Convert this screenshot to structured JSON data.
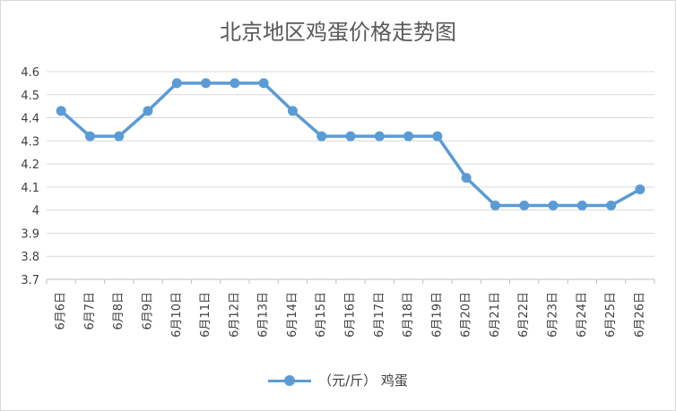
{
  "chart_data": {
    "type": "line",
    "title": "北京地区鸡蛋价格走势图",
    "categories": [
      "6月6日",
      "6月7日",
      "6月8日",
      "6月9日",
      "6月10日",
      "6月11日",
      "6月12日",
      "6月13日",
      "6月14日",
      "6月15日",
      "6月16日",
      "6月17日",
      "6月18日",
      "6月19日",
      "6月20日",
      "6月21日",
      "6月22日",
      "6月23日",
      "6月24日",
      "6月25日",
      "6月26日"
    ],
    "series": [
      {
        "name": "（元/斤） 鸡蛋",
        "values": [
          4.43,
          4.32,
          4.32,
          4.43,
          4.55,
          4.55,
          4.55,
          4.55,
          4.43,
          4.32,
          4.32,
          4.32,
          4.32,
          4.32,
          4.14,
          4.02,
          4.02,
          4.02,
          4.02,
          4.02,
          4.09
        ]
      }
    ],
    "ylim": [
      3.7,
      4.6
    ],
    "yticks": [
      "4.6",
      "4.5",
      "4.4",
      "4.3",
      "4.2",
      "4.1",
      "4",
      "3.9",
      "3.8",
      "3.7"
    ],
    "grid": true,
    "legend_position": "bottom",
    "colors": {
      "series": "#5b9bd5",
      "grid": "#d9d9d9",
      "text": "#404040"
    }
  }
}
